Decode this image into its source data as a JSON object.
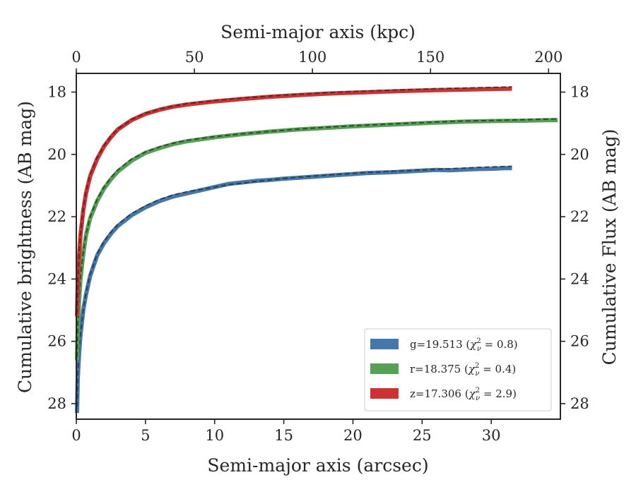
{
  "chart_data": {
    "type": "line",
    "title": "",
    "xlabel": "Semi-major axis (arcsec)",
    "ylabel": "Cumulative brightness (AB mag)",
    "x2label": "Semi-major axis (kpc)",
    "y2label": "Cumulative Flux (AB mag)",
    "xlim": [
      0,
      35
    ],
    "ylim": [
      28.5,
      17.4
    ],
    "x2lim": [
      0,
      205
    ],
    "y_inverted": true,
    "grid": false,
    "legend_position": "lower-right",
    "xticks": [
      0,
      5,
      10,
      15,
      20,
      25,
      30
    ],
    "yticks": [
      18,
      20,
      22,
      24,
      26,
      28
    ],
    "x2ticks": [
      0,
      50,
      100,
      150,
      200
    ],
    "y2ticks": [
      18,
      20,
      22,
      24,
      26,
      28
    ],
    "series": [
      {
        "name": "g",
        "legend": "g=19.513 (χ²ᵥ = 0.8)",
        "legend_prefix": "g=19.513 (",
        "color": "#4477aa",
        "model_color": "#2b2b2b",
        "x": [
          0.05,
          0.1,
          0.2,
          0.3,
          0.5,
          0.7,
          1.0,
          1.5,
          2.0,
          2.5,
          3.0,
          4.0,
          5.0,
          6.0,
          7.0,
          8.0,
          10.0,
          11.0,
          12.0,
          13.0,
          14.0,
          15.0,
          17.0,
          19.0,
          21.0,
          23.0,
          25.0,
          26.0,
          27.0,
          28.0,
          29.0,
          30.0,
          31.0,
          31.5
        ],
        "y": [
          28.3,
          27.2,
          26.4,
          25.8,
          25.0,
          24.5,
          23.9,
          23.25,
          22.85,
          22.55,
          22.3,
          21.95,
          21.7,
          21.5,
          21.35,
          21.25,
          21.05,
          20.95,
          20.9,
          20.85,
          20.82,
          20.78,
          20.72,
          20.66,
          20.6,
          20.57,
          20.52,
          20.5,
          20.51,
          20.49,
          20.47,
          20.46,
          20.44,
          20.44
        ],
        "model_y": [
          28.1,
          27.1,
          26.3,
          25.75,
          25.0,
          24.45,
          23.85,
          23.2,
          22.8,
          22.5,
          22.25,
          21.9,
          21.65,
          21.45,
          21.3,
          21.2,
          21.05,
          20.97,
          20.92,
          20.87,
          20.82,
          20.77,
          20.7,
          20.64,
          20.58,
          20.54,
          20.5,
          20.48,
          20.46,
          20.44,
          20.42,
          20.4,
          20.39,
          20.38
        ]
      },
      {
        "name": "r",
        "legend": "r=18.375 (χ²ᵥ = 0.4)",
        "legend_prefix": "r=18.375 (",
        "color": "#55a055",
        "model_color": "#2b2b2b",
        "x": [
          0.05,
          0.1,
          0.2,
          0.3,
          0.5,
          0.7,
          1.0,
          1.5,
          2.0,
          2.5,
          3.0,
          4.0,
          5.0,
          6.0,
          7.0,
          8.0,
          10.0,
          12.0,
          14.0,
          16.0,
          18.0,
          20.0,
          22.0,
          24.0,
          26.0,
          28.0,
          30.0,
          32.0,
          34.0,
          34.8
        ],
        "y": [
          26.6,
          25.6,
          24.7,
          24.0,
          23.2,
          22.6,
          22.05,
          21.5,
          21.1,
          20.8,
          20.55,
          20.2,
          19.95,
          19.8,
          19.67,
          19.58,
          19.45,
          19.35,
          19.27,
          19.2,
          19.15,
          19.1,
          19.06,
          19.02,
          18.98,
          18.95,
          18.93,
          18.92,
          18.9,
          18.9
        ],
        "model_y": [
          26.5,
          25.5,
          24.6,
          23.95,
          23.15,
          22.55,
          22.0,
          21.45,
          21.05,
          20.75,
          20.5,
          20.15,
          19.92,
          19.76,
          19.64,
          19.55,
          19.43,
          19.34,
          19.26,
          19.19,
          19.13,
          19.08,
          19.04,
          19.0,
          18.96,
          18.93,
          18.91,
          18.89,
          18.87,
          18.86
        ]
      },
      {
        "name": "z",
        "legend": "z=17.306 (χ²ᵥ = 2.9)",
        "legend_prefix": "z=17.306 (",
        "color": "#cc3333",
        "model_color": "#2b2b2b",
        "x": [
          0.05,
          0.1,
          0.2,
          0.3,
          0.5,
          0.7,
          1.0,
          1.5,
          2.0,
          2.5,
          3.0,
          4.0,
          5.0,
          6.0,
          7.0,
          8.0,
          10.0,
          12.0,
          14.0,
          16.0,
          18.0,
          20.0,
          22.0,
          24.0,
          26.0,
          28.0,
          30.0,
          31.5
        ],
        "y": [
          25.2,
          24.2,
          23.3,
          22.6,
          21.8,
          21.25,
          20.7,
          20.15,
          19.75,
          19.45,
          19.2,
          18.9,
          18.7,
          18.57,
          18.47,
          18.4,
          18.3,
          18.22,
          18.15,
          18.1,
          18.05,
          18.02,
          17.99,
          17.96,
          17.94,
          17.92,
          17.9,
          17.89
        ],
        "model_y": [
          25.1,
          24.1,
          23.2,
          22.55,
          21.75,
          21.2,
          20.65,
          20.1,
          19.72,
          19.42,
          19.18,
          18.88,
          18.68,
          18.55,
          18.45,
          18.37,
          18.27,
          18.19,
          18.13,
          18.07,
          18.02,
          17.98,
          17.95,
          17.92,
          17.89,
          17.87,
          17.85,
          17.83
        ]
      }
    ]
  }
}
